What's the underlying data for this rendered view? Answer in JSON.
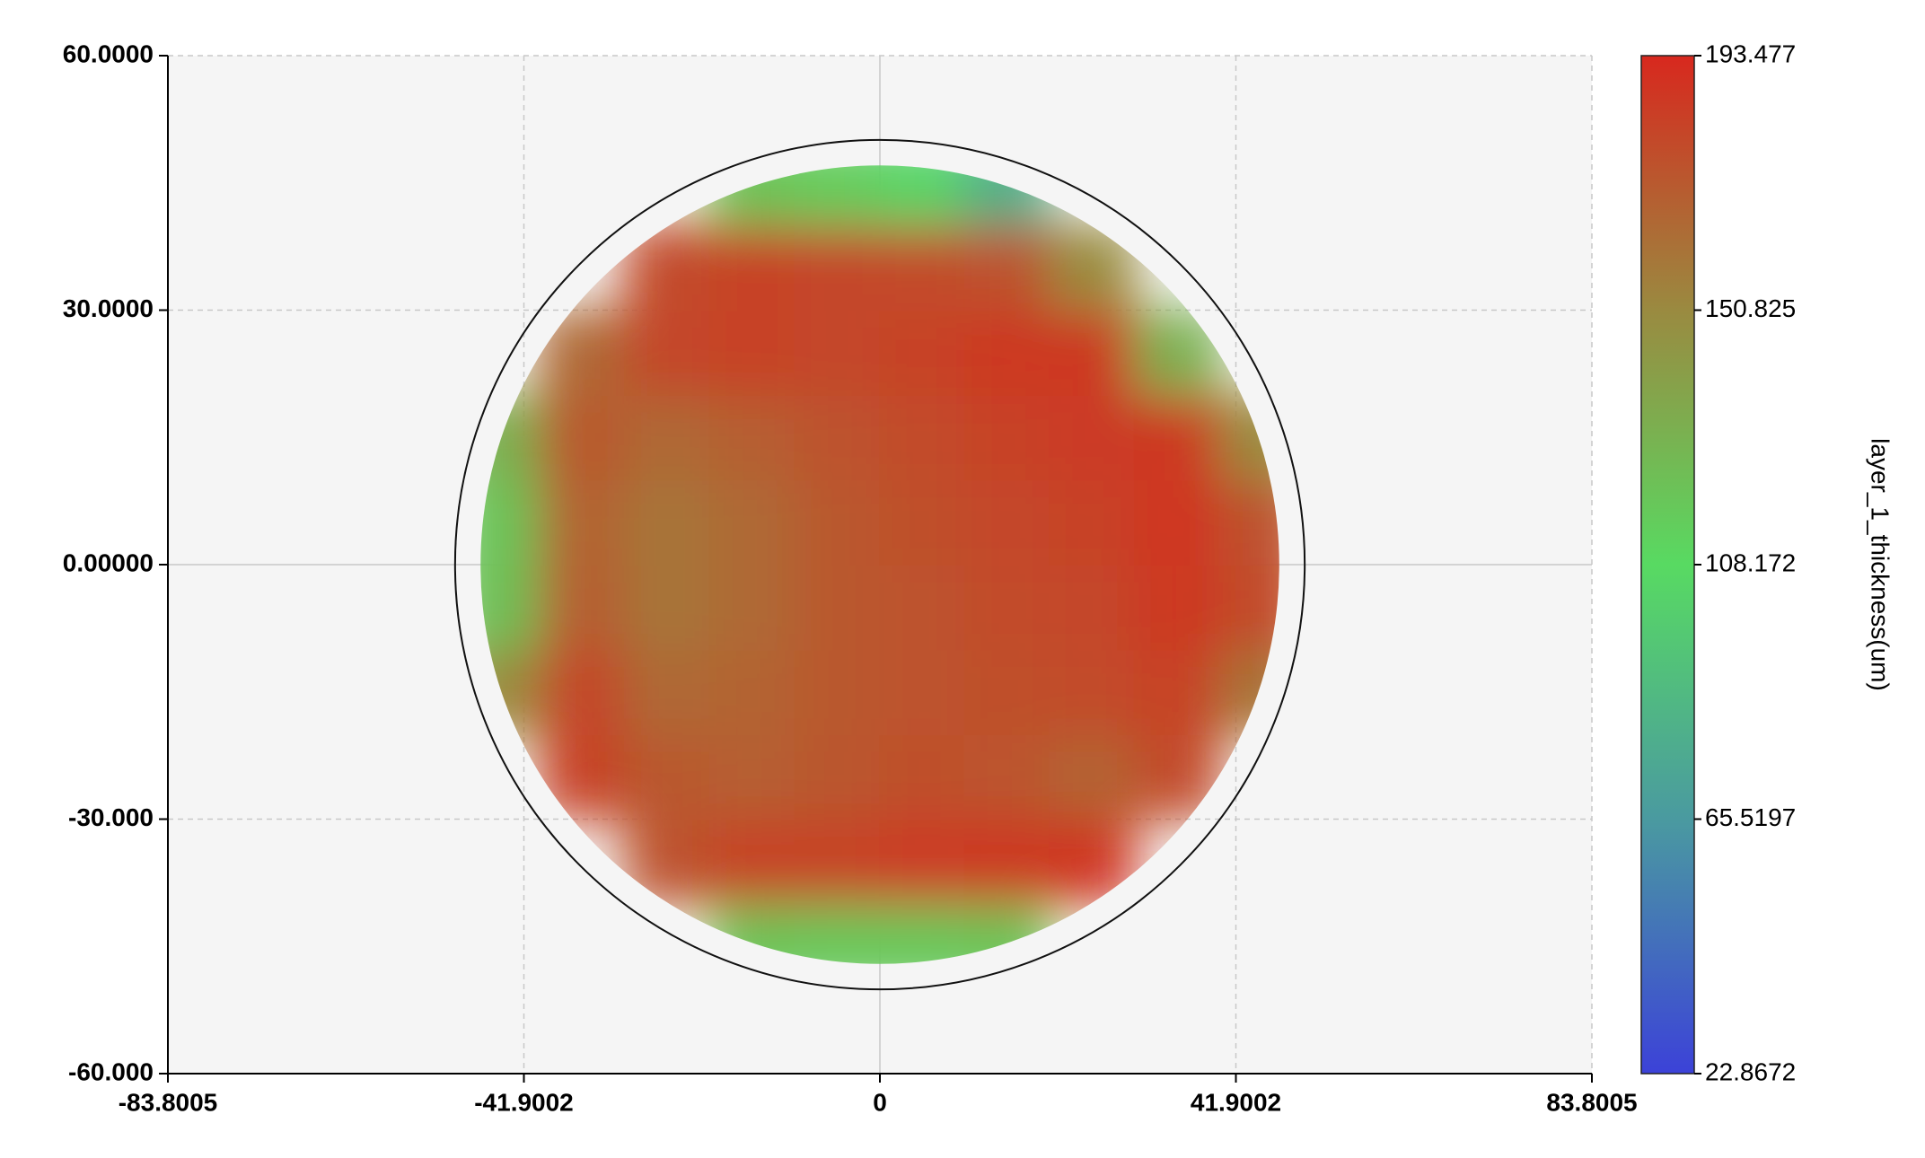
{
  "chart_data": {
    "type": "wafer_heatmap",
    "colorbar_label": "layer_1_thickness(um)",
    "x": [
      -45,
      -35,
      -25,
      -15,
      -5,
      5,
      15,
      25,
      35,
      45
    ],
    "y": [
      -45,
      -35,
      -25,
      -15,
      -5,
      5,
      15,
      25,
      35,
      45
    ],
    "z": [
      [
        null,
        null,
        null,
        120,
        118,
        118,
        120,
        null,
        null,
        null
      ],
      [
        null,
        null,
        175,
        182,
        182,
        185,
        186,
        188,
        null,
        null
      ],
      [
        null,
        182,
        172,
        170,
        173,
        176,
        174,
        168,
        178,
        null
      ],
      [
        150,
        180,
        165,
        168,
        172,
        175,
        176,
        178,
        182,
        160
      ],
      [
        122,
        170,
        160,
        165,
        172,
        175,
        178,
        180,
        186,
        178
      ],
      [
        120,
        168,
        160,
        165,
        172,
        176,
        180,
        182,
        188,
        175
      ],
      [
        130,
        172,
        165,
        170,
        175,
        178,
        182,
        185,
        186,
        150
      ],
      [
        null,
        165,
        180,
        182,
        180,
        182,
        186,
        186,
        130,
        null
      ],
      [
        null,
        null,
        178,
        182,
        180,
        178,
        175,
        150,
        null,
        null
      ],
      [
        null,
        null,
        null,
        120,
        115,
        105,
        80,
        null,
        null,
        null
      ]
    ],
    "wafer_outline_radius": 50,
    "xlim": [
      -83.8005,
      83.8005
    ],
    "xticks": [
      -83.8005,
      -41.9002,
      0,
      41.9002,
      83.8005
    ],
    "ylim": [
      -60,
      60
    ],
    "yticks": [
      {
        "value": -60,
        "label": "-60.000"
      },
      {
        "value": -30,
        "label": "-30.000"
      },
      {
        "value": 0,
        "label": "0.00000"
      },
      {
        "value": 30,
        "label": "30.0000"
      },
      {
        "value": 60,
        "label": "60.0000"
      }
    ],
    "clim": [
      22.8672,
      193.477
    ],
    "cticks": [
      22.8672,
      65.5197,
      108.172,
      150.825,
      193.477
    ],
    "colormap": [
      "#3c42d8",
      "#4a9aa0",
      "#58da62",
      "#9a8a40",
      "#d8281e"
    ],
    "grid": true
  }
}
